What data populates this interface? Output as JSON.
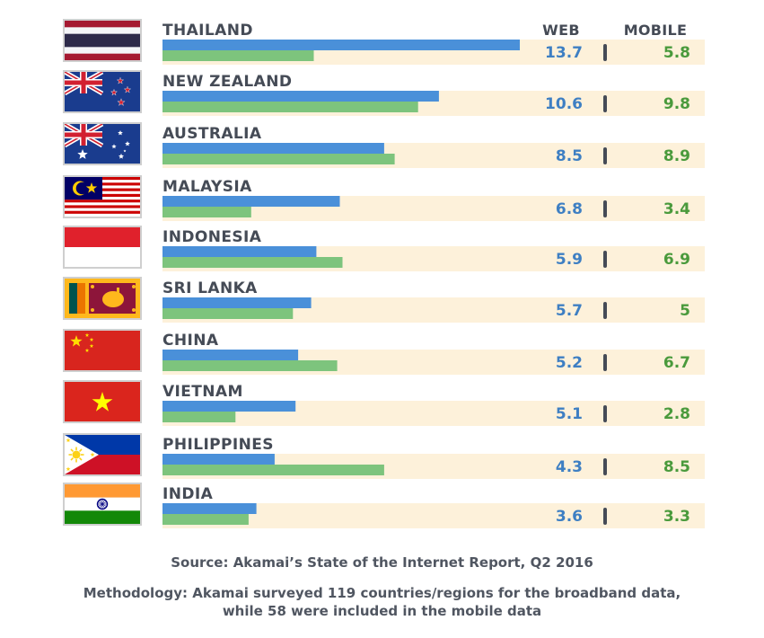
{
  "chart_data": {
    "type": "bar",
    "orientation": "horizontal",
    "title": "",
    "headers": {
      "web": "WEB",
      "mobile": "MOBILE"
    },
    "categories": [
      "THAILAND",
      "NEW ZEALAND",
      "AUSTRALIA",
      "MALAYSIA",
      "INDONESIA",
      "SRI LANKA",
      "CHINA",
      "VIETNAM",
      "PHILIPPINES",
      "INDIA"
    ],
    "series": [
      {
        "values": [
          13.7,
          10.6,
          8.5,
          6.8,
          5.9,
          5.7,
          5.2,
          5.1,
          4.3,
          3.6
        ],
        "color": "#4a90d9"
      },
      {
        "values": [
          5.8,
          9.8,
          8.9,
          3.4,
          6.9,
          5,
          6.7,
          2.8,
          8.5,
          3.3
        ],
        "color": "#7dc47d"
      }
    ],
    "value_labels": {
      "web": [
        "13.7",
        "10.6",
        "8.5",
        "6.8",
        "5.9",
        "5.7",
        "5.2",
        "5.1",
        "4.3",
        "3.6"
      ],
      "mobile": [
        "5.8",
        "9.8",
        "8.9",
        "3.4",
        "6.9",
        "5",
        "6.7",
        "2.8",
        "8.5",
        "3.3"
      ]
    },
    "xlim": [
      0,
      13.7
    ],
    "grid": false,
    "legend": "none"
  },
  "colors": {
    "row_band": "#fdf1da",
    "web_value": "#3e7fc3",
    "mobile_value": "#4a9a3c",
    "divider": "#454b56"
  },
  "flags": [
    "thailand-flag-icon",
    "new-zealand-flag-icon",
    "australia-flag-icon",
    "malaysia-flag-icon",
    "indonesia-flag-icon",
    "sri-lanka-flag-icon",
    "china-flag-icon",
    "vietnam-flag-icon",
    "philippines-flag-icon",
    "india-flag-icon"
  ],
  "footer": {
    "source": "Source: Akamai’s State of the Internet Report, Q2 2016",
    "methodology_line1": "Methodology: Akamai surveyed 119 countries/regions for the broadband data,",
    "methodology_line2": "while 58 were included in the mobile data"
  }
}
